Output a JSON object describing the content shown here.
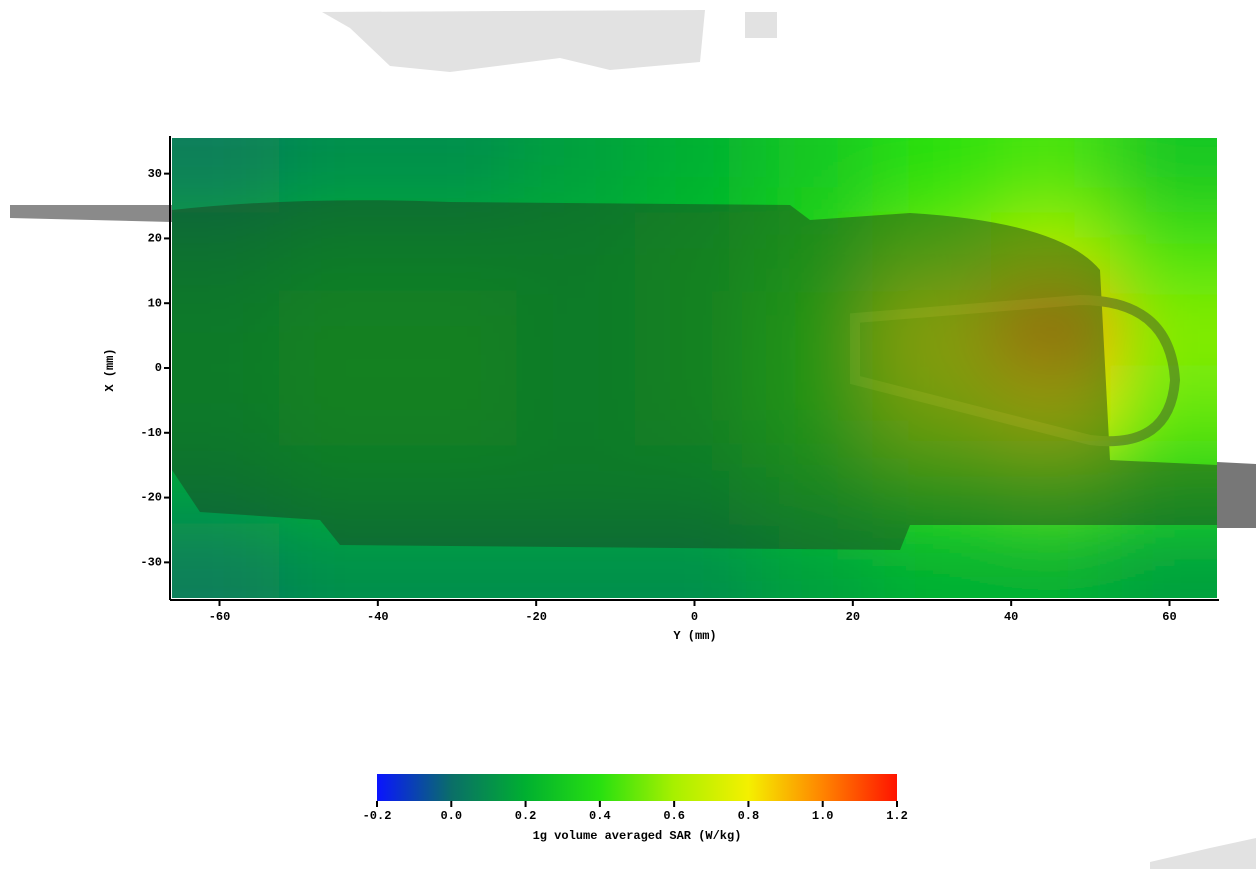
{
  "chart_data": {
    "type": "heatmap",
    "xlabel": "Y (mm)",
    "ylabel": "X (mm)",
    "xlim": [
      -66,
      66
    ],
    "ylim": [
      -35.5,
      35.5
    ],
    "xticks": [
      -60,
      -40,
      -20,
      0,
      20,
      40,
      60
    ],
    "yticks": [
      -30,
      -20,
      -10,
      0,
      10,
      20,
      30
    ],
    "x": [
      -60,
      -45,
      -30,
      -15,
      0,
      15,
      30,
      45,
      60
    ],
    "y": [
      30,
      18,
      6,
      -6,
      -18,
      -30
    ],
    "z": [
      [
        0.05,
        0.1,
        0.1,
        0.15,
        0.2,
        0.3,
        0.4,
        0.45,
        0.3
      ],
      [
        0.15,
        0.2,
        0.2,
        0.2,
        0.25,
        0.35,
        0.5,
        0.6,
        0.45
      ],
      [
        0.2,
        0.25,
        0.25,
        0.2,
        0.25,
        0.4,
        0.75,
        1.0,
        0.55
      ],
      [
        0.2,
        0.25,
        0.25,
        0.2,
        0.25,
        0.4,
        0.65,
        0.8,
        0.5
      ],
      [
        0.15,
        0.2,
        0.2,
        0.2,
        0.2,
        0.3,
        0.4,
        0.45,
        0.35
      ],
      [
        0.05,
        0.1,
        0.1,
        0.1,
        0.1,
        0.15,
        0.2,
        0.2,
        0.15
      ]
    ],
    "colorbar_label": "1g volume averaged SAR (W/kg)",
    "clim": [
      -0.2,
      1.2
    ],
    "cticks": [
      -0.2,
      {
        "value": 0,
        "label": "0.0"
      },
      0.2,
      0.4,
      0.6,
      0.8,
      {
        "value": 1,
        "label": "1.0"
      },
      1.2
    ],
    "colorscale": [
      "#0a14ff",
      "#0a6e68",
      "#00b030",
      "#28e010",
      "#a8f000",
      "#f4f000",
      "#ff8400",
      "#ff1400"
    ]
  }
}
